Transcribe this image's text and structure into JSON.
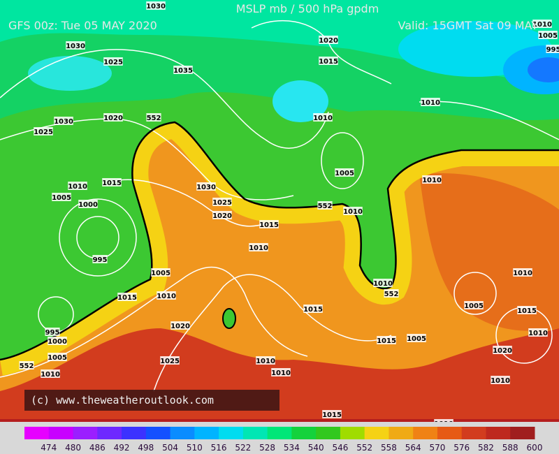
{
  "header": {
    "title": "MSLP mb / 500 hPa gpdm",
    "run": "GFS 00z: Tue 05 MAY 2020",
    "valid": "Valid: 15GMT Sat 09 MAY"
  },
  "copyright": "(c) www.theweatheroutlook.com",
  "colorbar": {
    "labels": [
      474,
      480,
      486,
      492,
      498,
      504,
      510,
      516,
      522,
      528,
      534,
      540,
      546,
      552,
      558,
      564,
      570,
      576,
      582,
      588,
      600
    ],
    "colors": [
      "#e600ff",
      "#c800ff",
      "#9b1eff",
      "#6e28ff",
      "#3c32ff",
      "#1450ff",
      "#0a8cff",
      "#00b4ff",
      "#00dcf0",
      "#00e6b4",
      "#00e678",
      "#14d23c",
      "#32c81e",
      "#a0dc00",
      "#f5d214",
      "#f0aa14",
      "#f08214",
      "#e65a14",
      "#d23c1e",
      "#be281e",
      "#a01e1e"
    ]
  },
  "isobar_labels": [
    "1030",
    "1030",
    "1025",
    "1035",
    "1020",
    "1015",
    "1030",
    "1025",
    "1020",
    "552",
    "1010",
    "1010",
    "1005",
    "1010",
    "1015",
    "1010",
    "1005",
    "1000",
    "1030",
    "1025",
    "1020",
    "552",
    "1010",
    "1015",
    "1010",
    "995",
    "1005",
    "1010",
    "1015",
    "1010",
    "552",
    "1005",
    "1015",
    "1015",
    "1010",
    "995",
    "1000",
    "1020",
    "1015",
    "1005",
    "1020",
    "1005",
    "1025",
    "1010",
    "552",
    "1010",
    "1010",
    "1010",
    "1015",
    "1010",
    "1010",
    "1005",
    "995",
    "1000",
    "1010"
  ]
}
